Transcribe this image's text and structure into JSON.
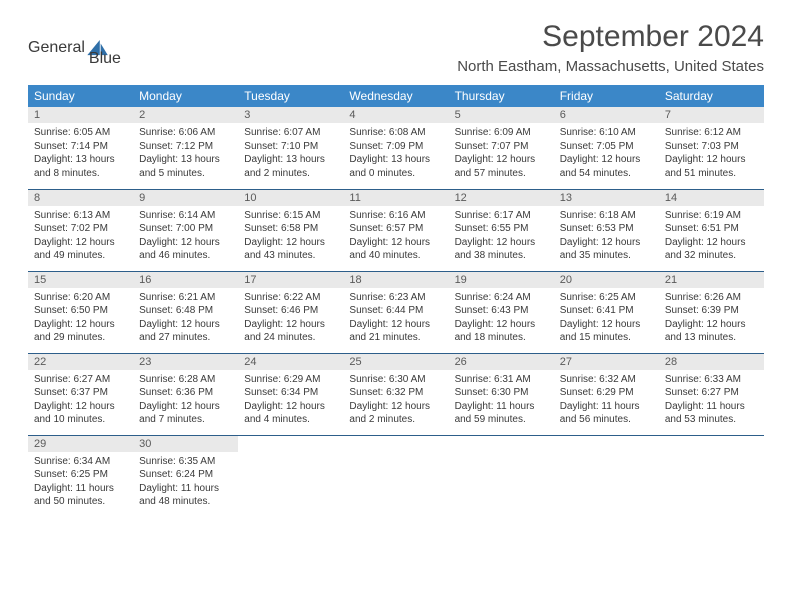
{
  "logo": {
    "text1": "General",
    "text2": "Blue"
  },
  "title": "September 2024",
  "location": "North Eastham, Massachusetts, United States",
  "colors": {
    "header_bg": "#3b87c8",
    "header_text": "#ffffff",
    "daynum_bg": "#e9e9e9",
    "row_border": "#2d5e8a",
    "logo_gray": "#6b6b6b",
    "logo_blue": "#2f6fa8"
  },
  "weekdays": [
    "Sunday",
    "Monday",
    "Tuesday",
    "Wednesday",
    "Thursday",
    "Friday",
    "Saturday"
  ],
  "days": [
    {
      "n": "1",
      "sr": "6:05 AM",
      "ss": "7:14 PM",
      "dl": "13 hours and 8 minutes."
    },
    {
      "n": "2",
      "sr": "6:06 AM",
      "ss": "7:12 PM",
      "dl": "13 hours and 5 minutes."
    },
    {
      "n": "3",
      "sr": "6:07 AM",
      "ss": "7:10 PM",
      "dl": "13 hours and 2 minutes."
    },
    {
      "n": "4",
      "sr": "6:08 AM",
      "ss": "7:09 PM",
      "dl": "13 hours and 0 minutes."
    },
    {
      "n": "5",
      "sr": "6:09 AM",
      "ss": "7:07 PM",
      "dl": "12 hours and 57 minutes."
    },
    {
      "n": "6",
      "sr": "6:10 AM",
      "ss": "7:05 PM",
      "dl": "12 hours and 54 minutes."
    },
    {
      "n": "7",
      "sr": "6:12 AM",
      "ss": "7:03 PM",
      "dl": "12 hours and 51 minutes."
    },
    {
      "n": "8",
      "sr": "6:13 AM",
      "ss": "7:02 PM",
      "dl": "12 hours and 49 minutes."
    },
    {
      "n": "9",
      "sr": "6:14 AM",
      "ss": "7:00 PM",
      "dl": "12 hours and 46 minutes."
    },
    {
      "n": "10",
      "sr": "6:15 AM",
      "ss": "6:58 PM",
      "dl": "12 hours and 43 minutes."
    },
    {
      "n": "11",
      "sr": "6:16 AM",
      "ss": "6:57 PM",
      "dl": "12 hours and 40 minutes."
    },
    {
      "n": "12",
      "sr": "6:17 AM",
      "ss": "6:55 PM",
      "dl": "12 hours and 38 minutes."
    },
    {
      "n": "13",
      "sr": "6:18 AM",
      "ss": "6:53 PM",
      "dl": "12 hours and 35 minutes."
    },
    {
      "n": "14",
      "sr": "6:19 AM",
      "ss": "6:51 PM",
      "dl": "12 hours and 32 minutes."
    },
    {
      "n": "15",
      "sr": "6:20 AM",
      "ss": "6:50 PM",
      "dl": "12 hours and 29 minutes."
    },
    {
      "n": "16",
      "sr": "6:21 AM",
      "ss": "6:48 PM",
      "dl": "12 hours and 27 minutes."
    },
    {
      "n": "17",
      "sr": "6:22 AM",
      "ss": "6:46 PM",
      "dl": "12 hours and 24 minutes."
    },
    {
      "n": "18",
      "sr": "6:23 AM",
      "ss": "6:44 PM",
      "dl": "12 hours and 21 minutes."
    },
    {
      "n": "19",
      "sr": "6:24 AM",
      "ss": "6:43 PM",
      "dl": "12 hours and 18 minutes."
    },
    {
      "n": "20",
      "sr": "6:25 AM",
      "ss": "6:41 PM",
      "dl": "12 hours and 15 minutes."
    },
    {
      "n": "21",
      "sr": "6:26 AM",
      "ss": "6:39 PM",
      "dl": "12 hours and 13 minutes."
    },
    {
      "n": "22",
      "sr": "6:27 AM",
      "ss": "6:37 PM",
      "dl": "12 hours and 10 minutes."
    },
    {
      "n": "23",
      "sr": "6:28 AM",
      "ss": "6:36 PM",
      "dl": "12 hours and 7 minutes."
    },
    {
      "n": "24",
      "sr": "6:29 AM",
      "ss": "6:34 PM",
      "dl": "12 hours and 4 minutes."
    },
    {
      "n": "25",
      "sr": "6:30 AM",
      "ss": "6:32 PM",
      "dl": "12 hours and 2 minutes."
    },
    {
      "n": "26",
      "sr": "6:31 AM",
      "ss": "6:30 PM",
      "dl": "11 hours and 59 minutes."
    },
    {
      "n": "27",
      "sr": "6:32 AM",
      "ss": "6:29 PM",
      "dl": "11 hours and 56 minutes."
    },
    {
      "n": "28",
      "sr": "6:33 AM",
      "ss": "6:27 PM",
      "dl": "11 hours and 53 minutes."
    },
    {
      "n": "29",
      "sr": "6:34 AM",
      "ss": "6:25 PM",
      "dl": "11 hours and 50 minutes."
    },
    {
      "n": "30",
      "sr": "6:35 AM",
      "ss": "6:24 PM",
      "dl": "11 hours and 48 minutes."
    }
  ],
  "labels": {
    "sunrise": "Sunrise:",
    "sunset": "Sunset:",
    "daylight": "Daylight:"
  },
  "layout": {
    "cols": 7,
    "first_weekday_index": 0,
    "total_days": 30
  }
}
